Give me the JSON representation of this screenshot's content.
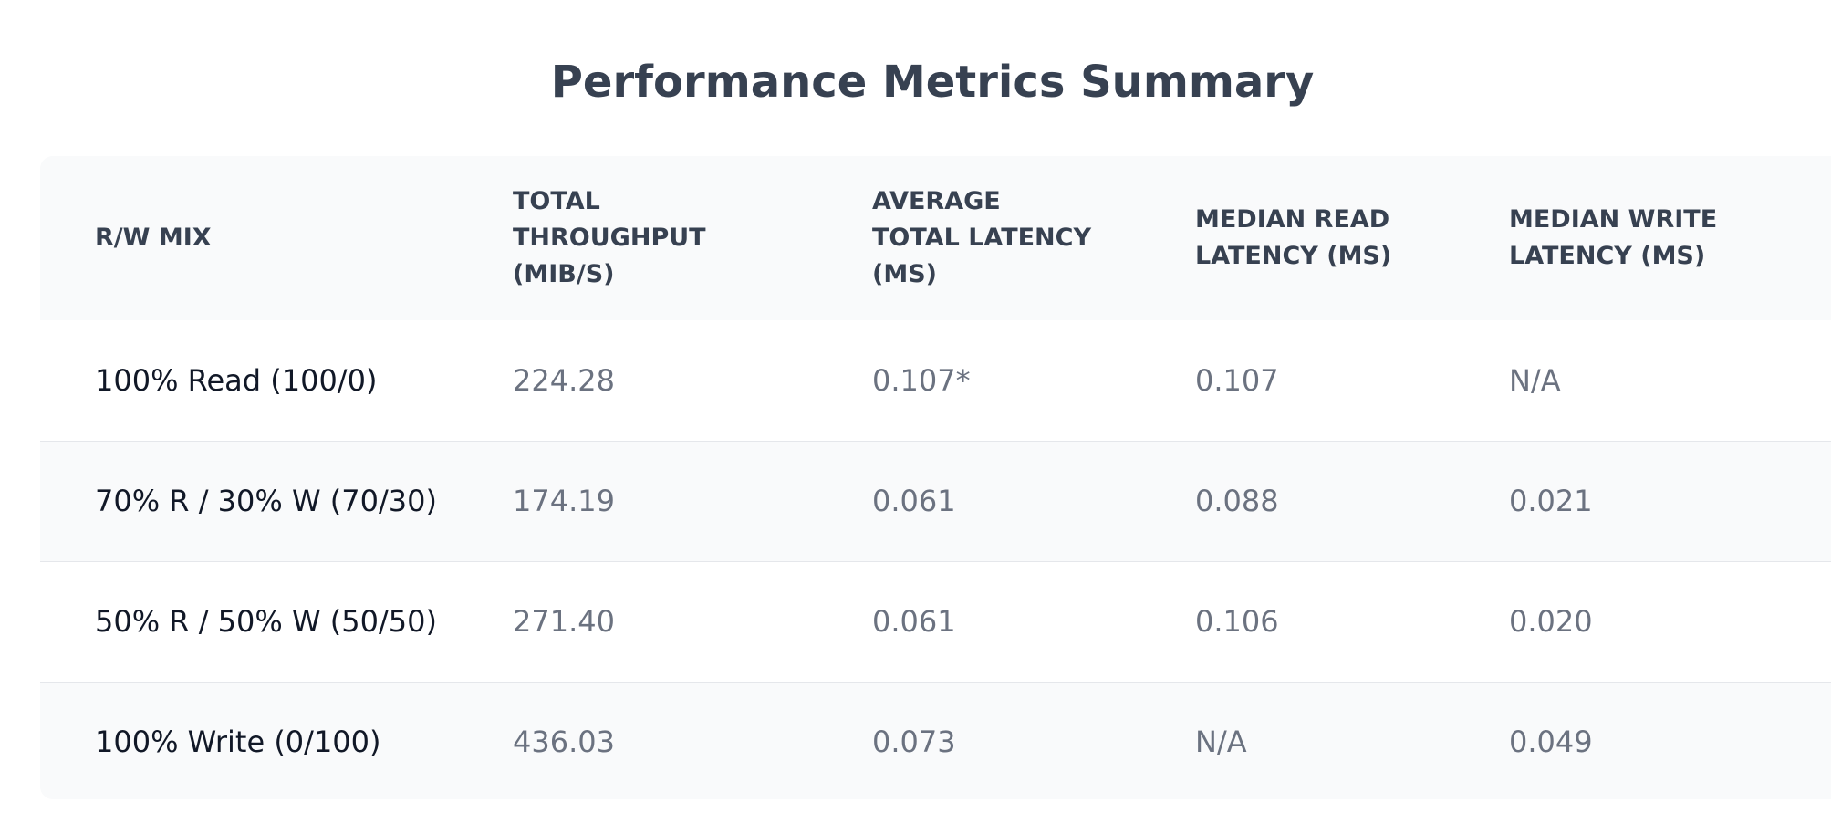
{
  "title": "Performance Metrics Summary",
  "table": {
    "headers": [
      "R/W MIX",
      "TOTAL THROUGHPUT (MIB/S)",
      "AVERAGE TOTAL LATENCY (MS)",
      "MEDIAN READ LATENCY (MS)",
      "MEDIAN WRITE LATENCY (MS)"
    ],
    "rows": [
      [
        "100% Read (100/0)",
        "224.28",
        "0.107*",
        "0.107",
        "N/A"
      ],
      [
        "70% R / 30% W (70/30)",
        "174.19",
        "0.061",
        "0.088",
        "0.021"
      ],
      [
        "50% R / 50% W (50/50)",
        "271.40",
        "0.061",
        "0.106",
        "0.020"
      ],
      [
        "100% Write (0/100)",
        "436.03",
        "0.073",
        "N/A",
        "0.049"
      ]
    ]
  }
}
